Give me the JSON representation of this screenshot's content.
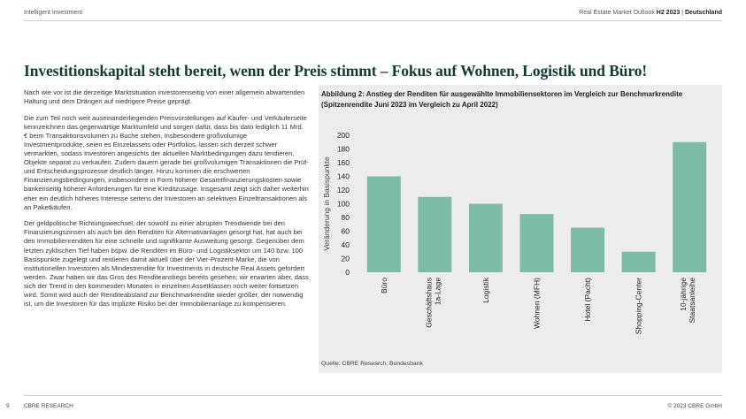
{
  "header": {
    "left": "Intelligent Investment",
    "right_prefix": "Real Estate Market Outlook",
    "right_period": "H2 2023",
    "right_sep": "|",
    "right_country": "Deutschland"
  },
  "title": "Investitionskapital steht bereit, wenn der Preis stimmt – Fokus auf Wohnen, Logistik und Büro!",
  "body": {
    "p1": "Nach wie vor ist die derzeitige Marktsituation investorenseitig von einer allgemein abwartenden Haltung und dem Drängen auf niedrigere Preise geprägt.",
    "p2": "Die zum Teil noch weit auseinanderliegenden Preisvorstellungen auf Käufer- und Verkäuferseite kennzeichnen das gegenwärtige Marktumfeld und sorgen dafür, dass bis dato lediglich 11 Mrd. € beim Transaktionsvolumen zu Buche stehen. Insbesondere großvolumige Investmentprodukte, seien es Einzelassets oder Portfolios, lassen sich derzeit schwer vermarkten, sodass Investoren angesichts der aktuellen Marktbedingungen dazu tendieren, Objekte separat zu verkaufen. Zudem dauern gerade bei großvolumigen Transaktionen die Prüf- und Entscheidungsprozesse deutlich länger. Hinzu kommen die erschwerten Finanzierungsbedingungen, insbesondere in Form höherer Gesamtfinanzierungskosten sowie bankenseitig höherer Anforderungen für eine Kreditzusage. Insgesamt zeigt sich daher weiterhin eher ein deutlich höheres Interesse seitens der Investoren an selektiven Einzeltransaktionen als an Paketkäufen.",
    "p3": "Der geldpolitische Richtungswechsel, der sowohl zu einer abrupten Trendwende bei den Finanzierungszinsen als auch bei den Renditen für Alternativanlagen gesorgt hat, hat auch bei den Immobilienrenditen für eine schnelle und signifikante Ausweitung gesorgt. Gegenüber dem letzten zyklischen Tief haben bspw. die Renditen im Büro- und Logistiksektor um 140 bzw. 100 Basispunkte zugelegt und rentieren damit aktuell über der Vier-Prozent-Marke, die von institutionellen Investoren als Mindestrendite für Investments in deutsche Real Assets gefordert werden. Zwar haben wir das Gros des Renditeanstiegs bereits gesehen; wir erwarten aber, dass sich der Trend in den kommenden Monaten in einzelnen Assetklassen noch weiter fortsetzen wird. Somit wird auch der Renditeabstand zur Benchmarkrendite wieder größer, der notwendig ist, um die Investoren für das implizite Risiko bei der Immobilienanlage zu kompensieren."
  },
  "figure": {
    "title_line1": "Abbildung 2:  Anstieg der Renditen für ausgewählte Immobiliensektoren im Vergleich zur Benchmarkrendite",
    "title_line2": "(Spitzenrendite Juni 2023 im Vergleich zu April 2022)",
    "source": "Quelle: CBRE Research, Bundesbank"
  },
  "chart_data": {
    "type": "bar",
    "title": "Abbildung 2:  Anstieg der Renditen für ausgewählte Immobiliensektoren im Vergleich zur Benchmarkrendite (Spitzenrendite Juni 2023 im Vergleich zu April 2022)",
    "xlabel": "",
    "ylabel": "Veränderung in Basispunkte",
    "ylim": [
      0,
      200
    ],
    "yticks": [
      0,
      20,
      40,
      60,
      80,
      100,
      120,
      140,
      160,
      180,
      200
    ],
    "grid": false,
    "bar_color": "#7dbba9",
    "categories": [
      [
        "Büro"
      ],
      [
        "Geschäftshaus",
        "1a-Lage"
      ],
      [
        "Logistik"
      ],
      [
        "Wohnen (MFH)"
      ],
      [
        "Hotel (Pacht)"
      ],
      [
        "Shopping-Center"
      ],
      [
        "10-jährige",
        "Staatsanleihe"
      ]
    ],
    "values": [
      140,
      110,
      100,
      85,
      65,
      30,
      190
    ]
  },
  "footer": {
    "page": "9",
    "left": "CBRE RESEARCH",
    "right": "© 2023 CBRE GmbH"
  }
}
